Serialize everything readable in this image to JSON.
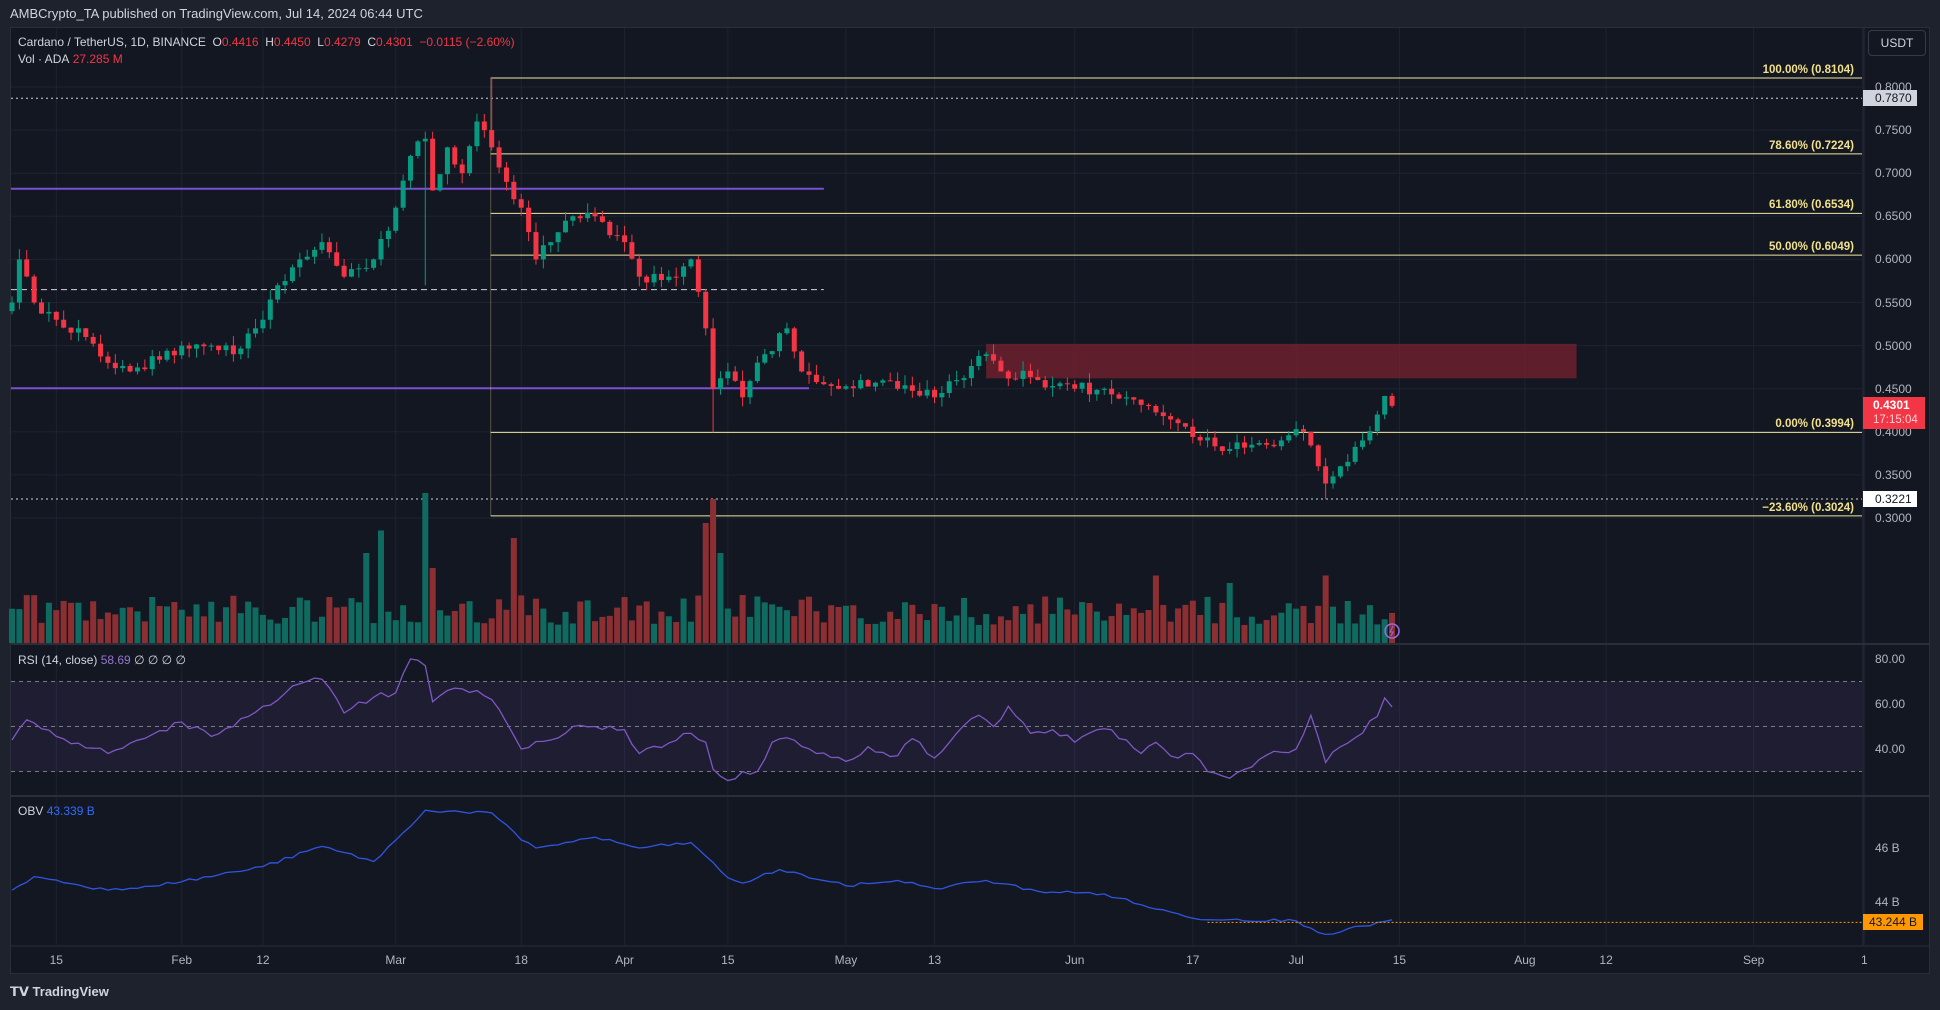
{
  "header": {
    "published": "AMBCrypto_TA published on TradingView.com, Jul 14, 2024 06:44 UTC"
  },
  "legend": {
    "symbol": "Cardano / TetherUS, 1D, BINANCE",
    "o_label": "O",
    "o": "0.4416",
    "h_label": "H",
    "h": "0.4450",
    "l_label": "L",
    "l": "0.4279",
    "c_label": "C",
    "c": "0.4301",
    "change": "−0.0115 (−2.60%)",
    "vol_label": "Vol · ADA",
    "vol": "27.285 M",
    "rsi_label": "RSI (14, close)",
    "rsi": "58.69",
    "rsi_extra": "∅ ∅ ∅ ∅",
    "obv_label": "OBV",
    "obv": "43.339 B"
  },
  "currency": "USDT",
  "price_axis": [
    "0.8000",
    "0.7500",
    "0.7000",
    "0.6500",
    "0.6000",
    "0.5500",
    "0.5000",
    "0.4500",
    "0.4000",
    "0.3500",
    "0.3000"
  ],
  "price_tags": {
    "high_line": "0.7870",
    "low_line": "0.3221",
    "last": "0.4301",
    "countdown": "17:15:04"
  },
  "fib_levels": [
    {
      "label": "100.00% (0.8104)",
      "price": 0.8104
    },
    {
      "label": "78.60% (0.7224)",
      "price": 0.7224
    },
    {
      "label": "61.80% (0.6534)",
      "price": 0.6534
    },
    {
      "label": "50.00% (0.6049)",
      "price": 0.6049
    },
    {
      "label": "0.00% (0.3994)",
      "price": 0.3994
    },
    {
      "label": "−23.60% (0.3024)",
      "price": 0.3024
    }
  ],
  "rsi_axis": [
    "80.00",
    "60.00",
    "40.00"
  ],
  "obv_axis": [
    "46 B",
    "44 B"
  ],
  "obv_tag": "43.244 B",
  "time_axis": [
    {
      "label": "15",
      "d": 6
    },
    {
      "label": "Feb",
      "d": 23
    },
    {
      "label": "12",
      "d": 34
    },
    {
      "label": "Mar",
      "d": 52
    },
    {
      "label": "18",
      "d": 69
    },
    {
      "label": "Apr",
      "d": 83
    },
    {
      "label": "15",
      "d": 97
    },
    {
      "label": "May",
      "d": 113
    },
    {
      "label": "13",
      "d": 125
    },
    {
      "label": "Jun",
      "d": 144
    },
    {
      "label": "17",
      "d": 160
    },
    {
      "label": "Jul",
      "d": 174
    },
    {
      "label": "15",
      "d": 188
    },
    {
      "label": "Aug",
      "d": 205
    },
    {
      "label": "12",
      "d": 216
    },
    {
      "label": "Sep",
      "d": 236
    },
    {
      "label": "1",
      "d": 251
    }
  ],
  "branding": "TradingView",
  "colors": {
    "up": "#089981",
    "down": "#f23645",
    "rsi": "#7e57c2",
    "obv": "#2f55e0",
    "fib": "#f0e6a0",
    "zone": "#7a2230",
    "purple_line": "#7b4fd6"
  },
  "chart_data": {
    "type": "candlestick",
    "title": "Cardano / TetherUS, 1D, BINANCE",
    "start_date": "2024-01-09",
    "end_date": "2024-07-14",
    "ylim": [
      0.27,
      0.83
    ],
    "close_keyframes": [
      [
        0,
        0.55
      ],
      [
        1,
        0.6
      ],
      [
        3,
        0.55
      ],
      [
        6,
        0.53
      ],
      [
        10,
        0.51
      ],
      [
        13,
        0.48
      ],
      [
        16,
        0.47
      ],
      [
        23,
        0.5
      ],
      [
        27,
        0.5
      ],
      [
        30,
        0.49
      ],
      [
        34,
        0.53
      ],
      [
        36,
        0.57
      ],
      [
        39,
        0.6
      ],
      [
        42,
        0.62
      ],
      [
        45,
        0.58
      ],
      [
        49,
        0.6
      ],
      [
        52,
        0.66
      ],
      [
        54,
        0.72
      ],
      [
        56,
        0.74
      ],
      [
        57,
        0.68
      ],
      [
        59,
        0.73
      ],
      [
        61,
        0.7
      ],
      [
        63,
        0.76
      ],
      [
        64,
        0.75
      ],
      [
        65,
        0.73
      ],
      [
        67,
        0.69
      ],
      [
        69,
        0.66
      ],
      [
        71,
        0.6
      ],
      [
        73,
        0.62
      ],
      [
        76,
        0.65
      ],
      [
        79,
        0.65
      ],
      [
        83,
        0.62
      ],
      [
        85,
        0.58
      ],
      [
        89,
        0.58
      ],
      [
        92,
        0.6
      ],
      [
        94,
        0.52
      ],
      [
        95,
        0.45
      ],
      [
        97,
        0.47
      ],
      [
        99,
        0.44
      ],
      [
        102,
        0.49
      ],
      [
        105,
        0.52
      ],
      [
        107,
        0.47
      ],
      [
        112,
        0.45
      ],
      [
        115,
        0.46
      ],
      [
        120,
        0.45
      ],
      [
        125,
        0.44
      ],
      [
        128,
        0.46
      ],
      [
        132,
        0.49
      ],
      [
        134,
        0.47
      ],
      [
        139,
        0.46
      ],
      [
        144,
        0.45
      ],
      [
        148,
        0.45
      ],
      [
        151,
        0.44
      ],
      [
        154,
        0.43
      ],
      [
        158,
        0.41
      ],
      [
        161,
        0.39
      ],
      [
        165,
        0.38
      ],
      [
        168,
        0.385
      ],
      [
        172,
        0.39
      ],
      [
        175,
        0.4
      ],
      [
        177,
        0.36
      ],
      [
        178,
        0.34
      ],
      [
        180,
        0.36
      ],
      [
        183,
        0.39
      ],
      [
        185,
        0.42
      ],
      [
        186,
        0.4416
      ],
      [
        187,
        0.4301
      ]
    ],
    "wick_overrides": [
      {
        "d": 65,
        "high": 0.8104
      },
      {
        "d": 56,
        "low": 0.57
      },
      {
        "d": 95,
        "low": 0.3994
      },
      {
        "d": 178,
        "low": 0.3221
      }
    ],
    "volume_spikes": [
      [
        48,
        0.6
      ],
      [
        50,
        0.75
      ],
      [
        56,
        1.0
      ],
      [
        57,
        0.5
      ],
      [
        68,
        0.7
      ],
      [
        94,
        0.8
      ],
      [
        95,
        0.96
      ],
      [
        96,
        0.6
      ],
      [
        155,
        0.45
      ],
      [
        165,
        0.4
      ],
      [
        178,
        0.45
      ]
    ],
    "horizontal_lines": [
      {
        "price": 0.682,
        "style": "purple",
        "to_d": 110
      },
      {
        "price": 0.4505,
        "style": "purple",
        "to_d": 108
      },
      {
        "price": 0.565,
        "style": "dashed",
        "to_d": 110
      },
      {
        "price": 0.787,
        "style": "dotted"
      },
      {
        "price": 0.3221,
        "style": "dotted"
      }
    ],
    "zone": {
      "from_d": 132,
      "to_d": 212,
      "top": 0.502,
      "bottom": 0.462
    },
    "rsi_keyframes": [
      [
        0,
        44
      ],
      [
        2,
        53
      ],
      [
        6,
        45.6
      ],
      [
        13,
        38
      ],
      [
        23,
        52
      ],
      [
        27,
        45.6
      ],
      [
        30,
        50
      ],
      [
        34,
        59
      ],
      [
        39,
        69
      ],
      [
        42,
        71
      ],
      [
        45,
        56
      ],
      [
        49,
        63
      ],
      [
        52,
        65
      ],
      [
        54,
        80
      ],
      [
        56,
        77
      ],
      [
        57,
        61
      ],
      [
        59,
        66
      ],
      [
        63,
        66
      ],
      [
        65,
        62
      ],
      [
        68,
        46
      ],
      [
        69,
        40
      ],
      [
        73,
        44
      ],
      [
        76,
        50
      ],
      [
        79,
        50
      ],
      [
        83,
        48.6
      ],
      [
        85,
        38
      ],
      [
        92,
        47
      ],
      [
        94,
        43
      ],
      [
        95,
        31
      ],
      [
        97,
        26
      ],
      [
        99,
        30
      ],
      [
        101,
        30
      ],
      [
        103,
        43
      ],
      [
        105,
        45
      ],
      [
        109,
        38
      ],
      [
        113,
        34.5
      ],
      [
        116,
        41
      ],
      [
        120,
        37
      ],
      [
        122,
        44.6
      ],
      [
        125,
        36
      ],
      [
        128,
        47
      ],
      [
        131,
        55
      ],
      [
        133,
        50
      ],
      [
        135,
        59
      ],
      [
        138,
        47
      ],
      [
        141,
        48.6
      ],
      [
        144,
        43
      ],
      [
        148,
        49
      ],
      [
        151,
        44
      ],
      [
        153,
        38
      ],
      [
        155,
        43
      ],
      [
        158,
        36
      ],
      [
        160,
        38
      ],
      [
        162,
        30
      ],
      [
        165,
        27
      ],
      [
        168,
        32
      ],
      [
        171,
        39
      ],
      [
        174,
        40
      ],
      [
        176,
        55
      ],
      [
        178,
        34
      ],
      [
        180,
        41
      ],
      [
        182,
        45
      ],
      [
        185,
        54.5
      ],
      [
        186,
        62.7
      ],
      [
        187,
        58.69
      ]
    ],
    "rsi_levels": [
      70,
      50,
      30
    ],
    "obv_keyframes": [
      [
        0,
        44.44
      ],
      [
        3,
        44.94
      ],
      [
        13,
        44.44
      ],
      [
        23,
        44.75
      ],
      [
        34,
        45.31
      ],
      [
        42,
        46.06
      ],
      [
        49,
        45.5
      ],
      [
        54,
        46.8
      ],
      [
        56,
        47.4
      ],
      [
        65,
        47.3
      ],
      [
        69,
        46.3
      ],
      [
        71,
        46.0
      ],
      [
        79,
        46.4
      ],
      [
        85,
        46.0
      ],
      [
        92,
        46.2
      ],
      [
        97,
        44.9
      ],
      [
        99,
        44.7
      ],
      [
        104,
        45.2
      ],
      [
        113,
        44.6
      ],
      [
        120,
        44.8
      ],
      [
        125,
        44.5
      ],
      [
        132,
        44.8
      ],
      [
        139,
        44.4
      ],
      [
        148,
        44.3
      ],
      [
        153,
        43.9
      ],
      [
        160,
        43.4
      ],
      [
        174,
        43.3
      ],
      [
        178,
        42.8
      ],
      [
        187,
        43.34
      ]
    ],
    "obv_marker": 43.244
  }
}
